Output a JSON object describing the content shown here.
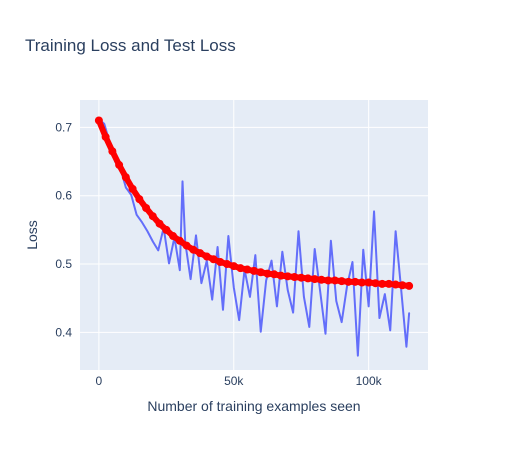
{
  "chart_data": {
    "type": "line",
    "title": "Training Loss and Test Loss",
    "xlabel": "Number of training examples seen",
    "ylabel": "Loss",
    "xlim": [
      -7000,
      122000
    ],
    "ylim": [
      0.345,
      0.74
    ],
    "x_ticks": [
      0,
      50000,
      100000
    ],
    "x_tick_labels": [
      "0",
      "50k",
      "100k"
    ],
    "y_ticks": [
      0.4,
      0.5,
      0.6,
      0.7
    ],
    "y_tick_labels": [
      "0.4",
      "0.5",
      "0.6",
      "0.7"
    ],
    "grid": true,
    "legend": "none",
    "colors": {
      "background": "#e5ecf6",
      "grid": "#ffffff",
      "train": "#636efa",
      "test": "#ff0000",
      "text": "#2a3f5f"
    },
    "series": [
      {
        "type": "line",
        "x": [
          0,
          2000,
          4000,
          6000,
          8000,
          10000,
          12000,
          14000,
          16000,
          18000,
          20000,
          22000,
          24000,
          26000,
          28000,
          30000,
          31000,
          32000,
          34000,
          36000,
          38000,
          40000,
          42000,
          44000,
          46000,
          48000,
          50000,
          52000,
          54000,
          56000,
          58000,
          60000,
          62000,
          64000,
          66000,
          68000,
          70000,
          72000,
          74000,
          76000,
          78000,
          80000,
          82000,
          84000,
          86000,
          88000,
          90000,
          92000,
          94000,
          96000,
          98000,
          100000,
          102000,
          104000,
          106000,
          108000,
          110000,
          112000,
          114000,
          115000
        ],
        "values": [
          0.712,
          0.705,
          0.678,
          0.65,
          0.64,
          0.612,
          0.601,
          0.572,
          0.561,
          0.548,
          0.533,
          0.52,
          0.553,
          0.501,
          0.539,
          0.491,
          0.621,
          0.532,
          0.478,
          0.542,
          0.472,
          0.505,
          0.448,
          0.525,
          0.433,
          0.541,
          0.466,
          0.418,
          0.492,
          0.452,
          0.513,
          0.401,
          0.476,
          0.505,
          0.438,
          0.518,
          0.462,
          0.429,
          0.548,
          0.452,
          0.408,
          0.522,
          0.461,
          0.398,
          0.534,
          0.446,
          0.415,
          0.468,
          0.503,
          0.366,
          0.521,
          0.438,
          0.577,
          0.421,
          0.456,
          0.403,
          0.548,
          0.465,
          0.379,
          0.428
        ]
      },
      {
        "type": "line",
        "x": [
          0,
          2500,
          5000,
          7500,
          10000,
          12500,
          15000,
          17500,
          20000,
          22500,
          25000,
          27500,
          30000,
          32500,
          35000,
          37500,
          40000,
          42500,
          45000,
          47500,
          50000,
          52500,
          55000,
          57500,
          60000,
          62500,
          65000,
          67500,
          70000,
          72500,
          75000,
          77500,
          80000,
          82500,
          85000,
          87500,
          90000,
          92500,
          95000,
          97500,
          100000,
          102500,
          105000,
          107500,
          110000,
          112500,
          115000
        ],
        "values": [
          0.71,
          0.686,
          0.665,
          0.645,
          0.627,
          0.61,
          0.595,
          0.582,
          0.57,
          0.559,
          0.55,
          0.541,
          0.534,
          0.527,
          0.521,
          0.516,
          0.511,
          0.507,
          0.503,
          0.5,
          0.497,
          0.494,
          0.492,
          0.49,
          0.488,
          0.486,
          0.485,
          0.483,
          0.482,
          0.481,
          0.48,
          0.479,
          0.478,
          0.477,
          0.476,
          0.476,
          0.475,
          0.474,
          0.474,
          0.473,
          0.473,
          0.472,
          0.471,
          0.471,
          0.47,
          0.469,
          0.468
        ]
      }
    ]
  }
}
